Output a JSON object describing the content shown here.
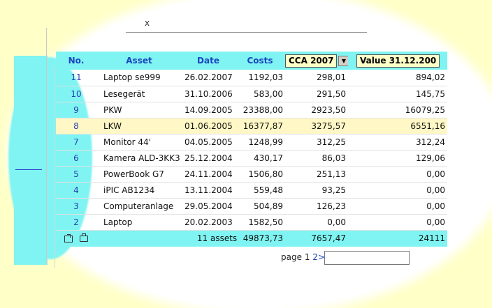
{
  "header": {
    "title_fragment": "x"
  },
  "table": {
    "columns": {
      "no": "No.",
      "asset": "Asset",
      "date": "Date",
      "costs": "Costs",
      "period_select": "CCA 2007",
      "value_select": "Value 31.12.200"
    },
    "rows": [
      {
        "no": "11",
        "asset": "Laptop se999",
        "date": "26.02.2007",
        "costs": "1192,03",
        "cca": "298,01",
        "value": "894,02"
      },
      {
        "no": "10",
        "asset": "Lesegerät",
        "date": "31.10.2006",
        "costs": "583,00",
        "cca": "291,50",
        "value": "145,75"
      },
      {
        "no": "9",
        "asset": "PKW",
        "date": "14.09.2005",
        "costs": "23388,00",
        "cca": "2923,50",
        "value": "16079,25"
      },
      {
        "no": "8",
        "asset": "LKW",
        "date": "01.06.2005",
        "costs": "16377,87",
        "cca": "3275,57",
        "value": "6551,16"
      },
      {
        "no": "7",
        "asset": "Monitor 44'",
        "date": "04.05.2005",
        "costs": "1248,99",
        "cca": "312,25",
        "value": "312,24"
      },
      {
        "no": "6",
        "asset": "Kamera ALD-3KK3",
        "date": "25.12.2004",
        "costs": "430,17",
        "cca": "86,03",
        "value": "129,06"
      },
      {
        "no": "5",
        "asset": "PowerBook G7",
        "date": "24.11.2004",
        "costs": "1506,80",
        "cca": "251,13",
        "value": "0,00"
      },
      {
        "no": "4",
        "asset": "iPIC AB1234",
        "date": "13.11.2004",
        "costs": "559,48",
        "cca": "93,25",
        "value": "0,00"
      },
      {
        "no": "3",
        "asset": "Computeranlage",
        "date": "29.05.2004",
        "costs": "504,89",
        "cca": "126,23",
        "value": "0,00"
      },
      {
        "no": "2",
        "asset": "Laptop",
        "date": "20.02.2003",
        "costs": "1582,50",
        "cca": "0,00",
        "value": "0,00"
      }
    ],
    "footer": {
      "count": "11 assets",
      "costs_total": "49873,73",
      "cca_total": "7657,47",
      "value_total": "24111"
    }
  },
  "pager": {
    "label": "page",
    "current": "1",
    "next": "2>"
  }
}
